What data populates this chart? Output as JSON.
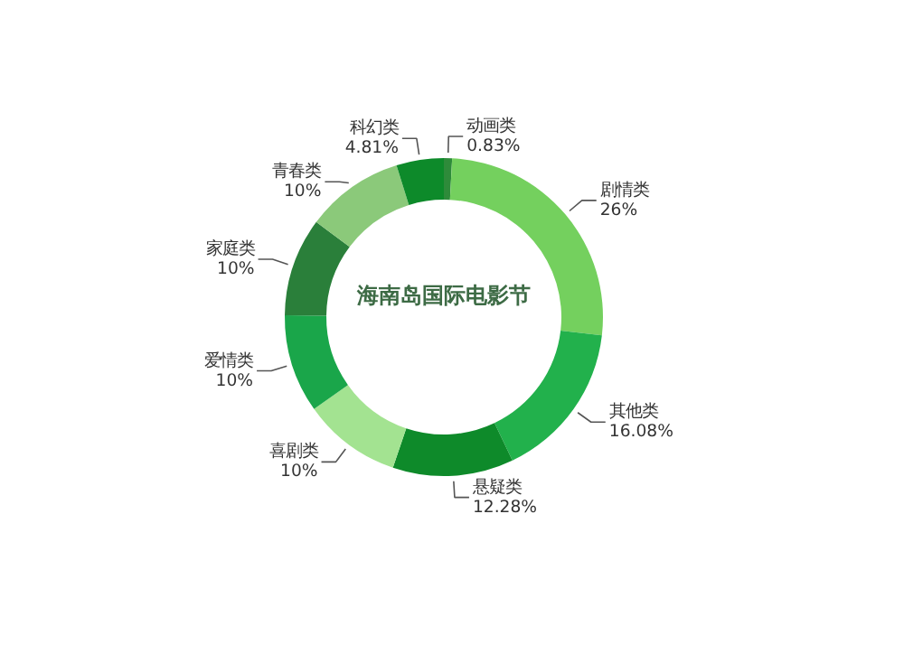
{
  "chart_data": {
    "type": "donut",
    "title": "海南岛国际电影节",
    "categories": [
      "动画类",
      "剧情类",
      "其他类",
      "悬疑类",
      "喜剧类",
      "爱情类",
      "家庭类",
      "青春类",
      "科幻类"
    ],
    "values": [
      0.83,
      26,
      16.08,
      12.28,
      10,
      10,
      10,
      10,
      4.81
    ],
    "value_labels": [
      "0.83%",
      "26%",
      "16.08%",
      "12.28%",
      "10%",
      "10%",
      "10%",
      "10%",
      "4.81%"
    ],
    "colors": [
      "#2e8b3a",
      "#74d05e",
      "#22b14c",
      "#0e8a2a",
      "#a3e391",
      "#1aa64a",
      "#2a7f3a",
      "#8bc97a",
      "#0d8a2a"
    ]
  }
}
